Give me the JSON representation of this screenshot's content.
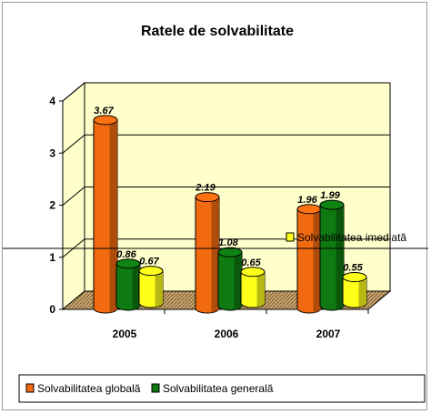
{
  "chart_data": {
    "type": "bar",
    "title": "Ratele de solvabilitate",
    "categories": [
      "2005",
      "2006",
      "2007"
    ],
    "series": [
      {
        "name": "Solvabilitatea globală",
        "values": [
          3.67,
          2.19,
          1.96
        ],
        "labels": [
          "3.67",
          "2.19",
          "1.96"
        ],
        "color": "#f26a10"
      },
      {
        "name": "Solvabilitatea generală",
        "values": [
          0.86,
          1.08,
          1.99
        ],
        "labels": [
          "0.86",
          "1.08",
          "1.99"
        ],
        "color": "#0f7a12"
      },
      {
        "name": "Solvabilitatea imediată",
        "values": [
          0.67,
          0.65,
          0.55
        ],
        "labels": [
          "0.67",
          "0.65",
          "0.55"
        ],
        "color": "#ffff1a"
      }
    ],
    "yticks": [
      "0",
      "1",
      "2",
      "3",
      "4"
    ],
    "ylim": [
      0,
      4
    ],
    "grid": true,
    "legend_placement": "bottom"
  }
}
